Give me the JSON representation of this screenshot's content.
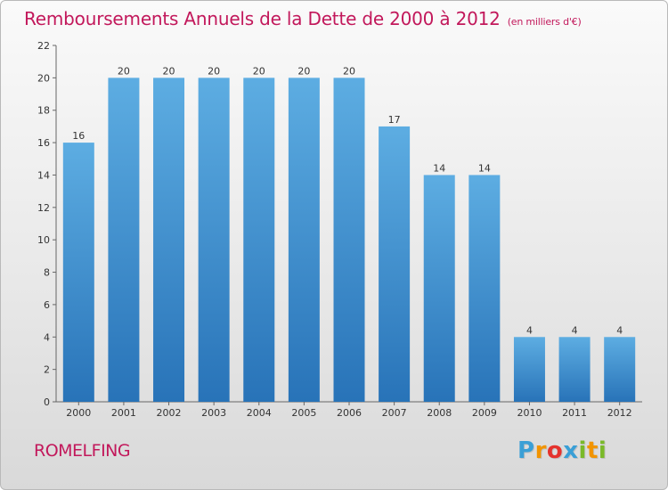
{
  "chart_data": {
    "type": "bar",
    "title": "Remboursements Annuels de la Dette de 2000 à 2012",
    "subtitle": "(en milliers d'€)",
    "categories": [
      "2000",
      "2001",
      "2002",
      "2003",
      "2004",
      "2005",
      "2006",
      "2007",
      "2008",
      "2009",
      "2010",
      "2011",
      "2012"
    ],
    "values": [
      16,
      20,
      20,
      20,
      20,
      20,
      20,
      17,
      14,
      14,
      4,
      4,
      4
    ],
    "ylim": [
      0,
      22
    ],
    "yticks": [
      0,
      2,
      4,
      6,
      8,
      10,
      12,
      14,
      16,
      18,
      20,
      22
    ],
    "grid": false,
    "bar_color_top": "#5dade2",
    "bar_color_bottom": "#2873b8"
  },
  "footer": {
    "city": "ROMELFING",
    "logo_text": [
      "P",
      "r",
      "o",
      "x",
      "i",
      "t",
      "i"
    ],
    "logo_colors": [
      "#3a9fd6",
      "#f29400",
      "#e5322d",
      "#3a9fd6",
      "#7ab929",
      "#f29400",
      "#7ab929"
    ]
  },
  "colors": {
    "title": "#c2185b"
  }
}
